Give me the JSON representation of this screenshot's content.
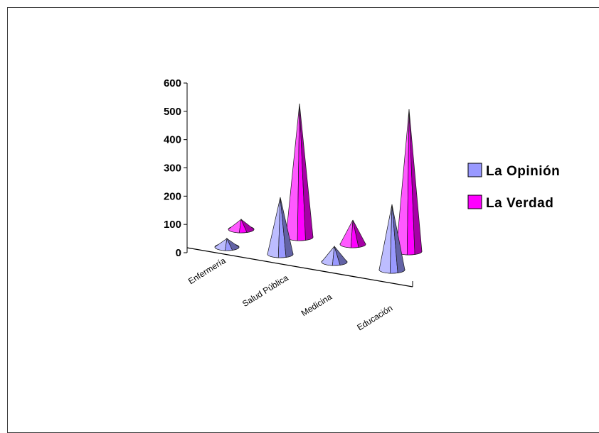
{
  "chart_data": {
    "type": "bar",
    "style": "3d-cone",
    "title": "",
    "xlabel": "",
    "ylabel": "",
    "ylim": [
      0,
      600
    ],
    "yticks": [
      0,
      100,
      200,
      300,
      400,
      500,
      600
    ],
    "categories": [
      "Enfermería",
      "Salud Pública",
      "Medicina",
      "Educación"
    ],
    "series": [
      {
        "name": "La Opinión",
        "values": [
          30,
          200,
          55,
          230
        ],
        "color": "#9999ff"
      },
      {
        "name": "La Verdad",
        "values": [
          35,
          470,
          85,
          500
        ],
        "color": "#ff00ff"
      }
    ],
    "legend": {
      "placement": "right"
    },
    "grid": false
  }
}
